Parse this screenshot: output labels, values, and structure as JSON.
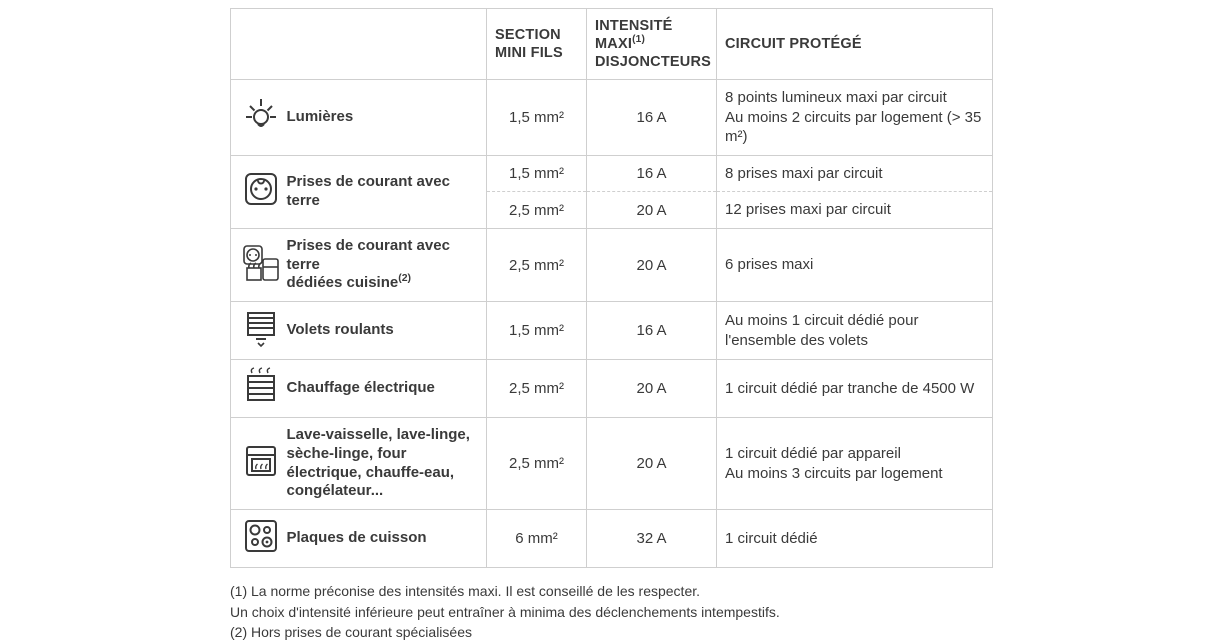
{
  "colors": {
    "text": "#3a3a3a",
    "border": "#cfcfcf",
    "background": "#ffffff"
  },
  "header": {
    "section": "SECTION MINI FILS",
    "intensity": "INTENSITÉ MAXI",
    "intensity_sup": "(1)",
    "intensity_line2": "DISJONCTEURS",
    "circuit": "CIRCUIT PROTÉGÉ"
  },
  "rows": {
    "lights": {
      "label": "Lumières",
      "section": "1,5 mm²",
      "intensity": "16 A",
      "circuit": "8 points lumineux maxi par circuit\nAu moins 2 circuits par logement (> 35 m²)"
    },
    "sockets": {
      "label": "Prises de courant avec terre",
      "a": {
        "section": "1,5 mm²",
        "intensity": "16 A",
        "circuit": "8 prises maxi par circuit"
      },
      "b": {
        "section": "2,5 mm²",
        "intensity": "20 A",
        "circuit": "12 prises maxi par circuit"
      }
    },
    "kitchen": {
      "label_l1": "Prises de courant avec terre",
      "label_l2": "dédiées cuisine",
      "label_sup": "(2)",
      "section": "2,5 mm²",
      "intensity": "20 A",
      "circuit": "6 prises maxi"
    },
    "shutters": {
      "label": "Volets roulants",
      "section": "1,5 mm²",
      "intensity": "16 A",
      "circuit": "Au moins 1 circuit dédié pour l'ensemble des volets"
    },
    "heating": {
      "label": "Chauffage électrique",
      "section": "2,5 mm²",
      "intensity": "20 A",
      "circuit": "1 circuit dédié par tranche de 4500 W"
    },
    "appliances": {
      "label": "Lave-vaisselle, lave-linge, sèche-linge, four électrique, chauffe-eau, congélateur...",
      "section": "2,5 mm²",
      "intensity": "20 A",
      "circuit": "1 circuit dédié par appareil\nAu moins 3 circuits par logement"
    },
    "hob": {
      "label": "Plaques de cuisson",
      "section": "6 mm²",
      "intensity": "32 A",
      "circuit": "1 circuit dédié"
    }
  },
  "footnotes": {
    "n1a": "(1) La norme préconise des intensités maxi. Il est conseillé de les respecter.",
    "n1b": "Un choix d'intensité inférieure peut entraîner à minima des déclenchements intempestifs.",
    "n2": "(2) Hors prises de courant spécialisées"
  }
}
